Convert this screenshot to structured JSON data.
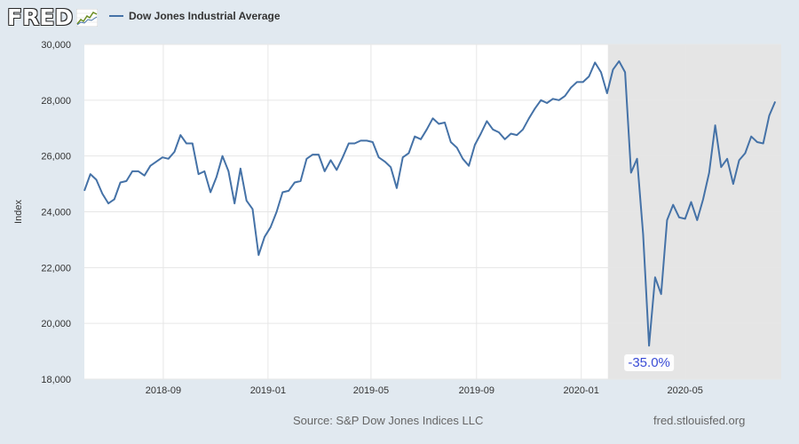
{
  "header": {
    "logo_text": "FRED",
    "mini_chart_icon": "line-chart-icon"
  },
  "legend": {
    "label": "Dow Jones Industrial Average",
    "color": "#4572a7"
  },
  "footer": {
    "source": "Source: S&P Dow Jones Indices LLC",
    "site": "fred.stlouisfed.org"
  },
  "chart_data": {
    "type": "line",
    "title": "",
    "xlabel": "",
    "ylabel": "Index",
    "ylim": [
      18000,
      30000
    ],
    "xlim": [
      "2018-06-01",
      "2020-08-21"
    ],
    "y_ticks": [
      18000,
      20000,
      22000,
      24000,
      26000,
      28000,
      30000
    ],
    "x_ticks": [
      "2018-09",
      "2019-01",
      "2019-05",
      "2019-09",
      "2020-01",
      "2020-05"
    ],
    "grid": true,
    "line_color": "#4572a7",
    "shaded_region": {
      "start": "2020-02-01",
      "end": "2020-08-21",
      "color": "#e5e5e5"
    },
    "annotation": {
      "text": "-35.0%",
      "x": "2020-03-20",
      "y": 18000,
      "color": "#3a4cd6"
    },
    "series": [
      {
        "name": "Dow Jones Industrial Average",
        "points": [
          [
            "2018-06-01",
            24750
          ],
          [
            "2018-06-08",
            25350
          ],
          [
            "2018-06-15",
            25150
          ],
          [
            "2018-06-22",
            24650
          ],
          [
            "2018-06-29",
            24300
          ],
          [
            "2018-07-06",
            24450
          ],
          [
            "2018-07-13",
            25050
          ],
          [
            "2018-07-20",
            25100
          ],
          [
            "2018-07-27",
            25450
          ],
          [
            "2018-08-03",
            25450
          ],
          [
            "2018-08-10",
            25300
          ],
          [
            "2018-08-17",
            25650
          ],
          [
            "2018-08-24",
            25800
          ],
          [
            "2018-08-31",
            25950
          ],
          [
            "2018-09-07",
            25900
          ],
          [
            "2018-09-14",
            26150
          ],
          [
            "2018-09-21",
            26750
          ],
          [
            "2018-09-28",
            26450
          ],
          [
            "2018-10-05",
            26450
          ],
          [
            "2018-10-12",
            25350
          ],
          [
            "2018-10-19",
            25450
          ],
          [
            "2018-10-26",
            24700
          ],
          [
            "2018-11-02",
            25250
          ],
          [
            "2018-11-09",
            26000
          ],
          [
            "2018-11-16",
            25450
          ],
          [
            "2018-11-23",
            24300
          ],
          [
            "2018-11-30",
            25550
          ],
          [
            "2018-12-07",
            24400
          ],
          [
            "2018-12-14",
            24100
          ],
          [
            "2018-12-21",
            22450
          ],
          [
            "2018-12-28",
            23100
          ],
          [
            "2019-01-04",
            23450
          ],
          [
            "2019-01-11",
            24000
          ],
          [
            "2019-01-18",
            24700
          ],
          [
            "2019-01-25",
            24750
          ],
          [
            "2019-02-01",
            25050
          ],
          [
            "2019-02-08",
            25100
          ],
          [
            "2019-02-15",
            25900
          ],
          [
            "2019-02-22",
            26050
          ],
          [
            "2019-03-01",
            26050
          ],
          [
            "2019-03-08",
            25450
          ],
          [
            "2019-03-15",
            25850
          ],
          [
            "2019-03-22",
            25500
          ],
          [
            "2019-03-29",
            25950
          ],
          [
            "2019-04-05",
            26450
          ],
          [
            "2019-04-12",
            26450
          ],
          [
            "2019-04-19",
            26550
          ],
          [
            "2019-04-26",
            26550
          ],
          [
            "2019-05-03",
            26500
          ],
          [
            "2019-05-10",
            25950
          ],
          [
            "2019-05-17",
            25800
          ],
          [
            "2019-05-24",
            25600
          ],
          [
            "2019-05-31",
            24850
          ],
          [
            "2019-06-07",
            25950
          ],
          [
            "2019-06-14",
            26100
          ],
          [
            "2019-06-21",
            26700
          ],
          [
            "2019-06-28",
            26600
          ],
          [
            "2019-07-05",
            26950
          ],
          [
            "2019-07-12",
            27350
          ],
          [
            "2019-07-19",
            27150
          ],
          [
            "2019-07-26",
            27200
          ],
          [
            "2019-08-02",
            26500
          ],
          [
            "2019-08-09",
            26300
          ],
          [
            "2019-08-16",
            25900
          ],
          [
            "2019-08-23",
            25650
          ],
          [
            "2019-08-30",
            26400
          ],
          [
            "2019-09-06",
            26800
          ],
          [
            "2019-09-13",
            27250
          ],
          [
            "2019-09-20",
            26950
          ],
          [
            "2019-09-27",
            26850
          ],
          [
            "2019-10-04",
            26600
          ],
          [
            "2019-10-11",
            26800
          ],
          [
            "2019-10-18",
            26750
          ],
          [
            "2019-10-25",
            26950
          ],
          [
            "2019-11-01",
            27350
          ],
          [
            "2019-11-08",
            27700
          ],
          [
            "2019-11-15",
            28000
          ],
          [
            "2019-11-22",
            27900
          ],
          [
            "2019-11-29",
            28050
          ],
          [
            "2019-12-06",
            28000
          ],
          [
            "2019-12-13",
            28150
          ],
          [
            "2019-12-20",
            28450
          ],
          [
            "2019-12-27",
            28650
          ],
          [
            "2020-01-03",
            28650
          ],
          [
            "2020-01-10",
            28850
          ],
          [
            "2020-01-17",
            29350
          ],
          [
            "2020-01-24",
            29000
          ],
          [
            "2020-01-31",
            28250
          ],
          [
            "2020-02-07",
            29100
          ],
          [
            "2020-02-14",
            29400
          ],
          [
            "2020-02-21",
            29000
          ],
          [
            "2020-02-28",
            25400
          ],
          [
            "2020-03-06",
            25900
          ],
          [
            "2020-03-13",
            23200
          ],
          [
            "2020-03-20",
            19200
          ],
          [
            "2020-03-27",
            21650
          ],
          [
            "2020-04-03",
            21050
          ],
          [
            "2020-04-10",
            23700
          ],
          [
            "2020-04-17",
            24250
          ],
          [
            "2020-04-24",
            23800
          ],
          [
            "2020-05-01",
            23750
          ],
          [
            "2020-05-08",
            24350
          ],
          [
            "2020-05-15",
            23700
          ],
          [
            "2020-05-22",
            24450
          ],
          [
            "2020-05-29",
            25400
          ],
          [
            "2020-06-05",
            27100
          ],
          [
            "2020-06-12",
            25600
          ],
          [
            "2020-06-19",
            25900
          ],
          [
            "2020-06-26",
            25000
          ],
          [
            "2020-07-03",
            25850
          ],
          [
            "2020-07-10",
            26100
          ],
          [
            "2020-07-17",
            26700
          ],
          [
            "2020-07-24",
            26500
          ],
          [
            "2020-07-31",
            26450
          ],
          [
            "2020-08-07",
            27450
          ],
          [
            "2020-08-14",
            27950
          ]
        ]
      }
    ]
  }
}
